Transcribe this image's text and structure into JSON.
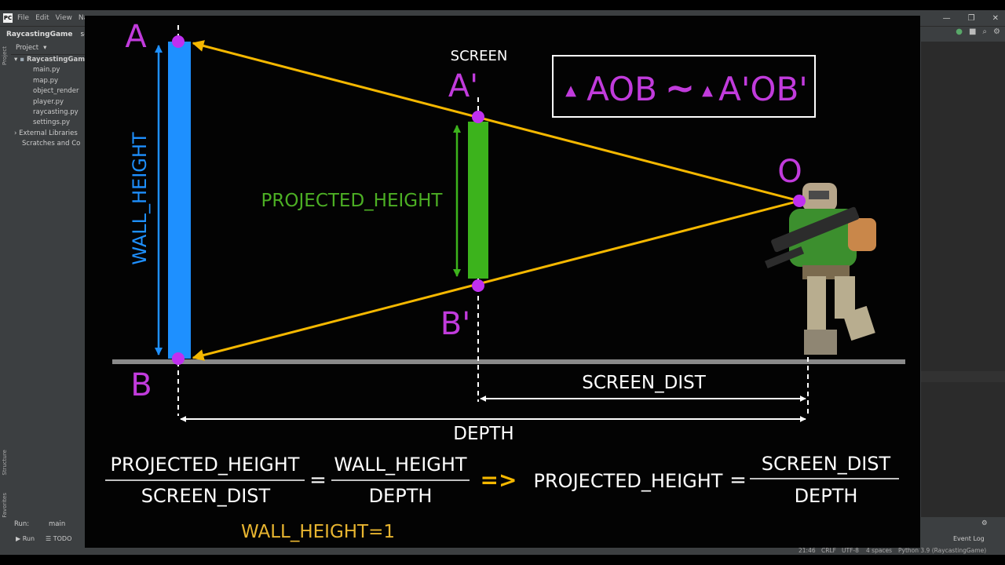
{
  "ide": {
    "logo": "PC",
    "menu": [
      "File",
      "Edit",
      "View",
      "Nav"
    ],
    "window_controls": [
      "—",
      "❐",
      "✕"
    ],
    "breadcrumb": "RaycastingGame",
    "breadcrumb_file": "set",
    "project_header": "Project",
    "tree": {
      "root": "RaycastingGame",
      "files": [
        "main.py",
        "map.py",
        "object_render",
        "player.py",
        "raycasting.py",
        "settings.py"
      ],
      "external": "External Libraries",
      "scratches": "Scratches and Co"
    },
    "left_strip": {
      "project": "Project",
      "structure": "Structure",
      "favorites": "Favorites"
    },
    "run_tab_label": "Run:",
    "run_config": "main",
    "bottom_tabs": {
      "run": "Run",
      "todo": "TODO"
    },
    "event_log": "Event Log",
    "status": {
      "time": "21:46",
      "line_ending": "CRLF",
      "encoding": "UTF-8",
      "indent": "4 spaces",
      "interpreter": "Python 3.9 (RaycastingGame)"
    }
  },
  "diagram": {
    "labels": {
      "A": "A",
      "B": "B",
      "A_prime": "A'",
      "B_prime": "B'",
      "O": "O",
      "screen": "SCREEN",
      "wall_height": "WALL_HEIGHT",
      "projected_height": "PROJECTED_HEIGHT",
      "screen_dist": "SCREEN_DIST",
      "depth": "DEPTH"
    },
    "similarity": {
      "tri1": "AOB",
      "tilde": "~",
      "tri2": "A'OB'"
    },
    "formula": {
      "lhs_num": "PROJECTED_HEIGHT",
      "lhs_den": "SCREEN_DIST",
      "eq1": "=",
      "mid_num": "WALL_HEIGHT",
      "mid_den": "DEPTH",
      "implies": "=>",
      "rhs_var": "PROJECTED_HEIGHT",
      "eq2": "=",
      "rhs_num": "SCREEN_DIST",
      "rhs_den": "DEPTH"
    },
    "note": "WALL_HEIGHT=1",
    "colors": {
      "purple": "#c13bdc",
      "point": "#c030f0",
      "wall": "#1e90ff",
      "screen": "#3cb31c",
      "projected_label": "#4caf24",
      "ray": "#f5b800",
      "ground": "#8a8a8a",
      "white": "#ffffff",
      "note": "#e8b530"
    }
  }
}
